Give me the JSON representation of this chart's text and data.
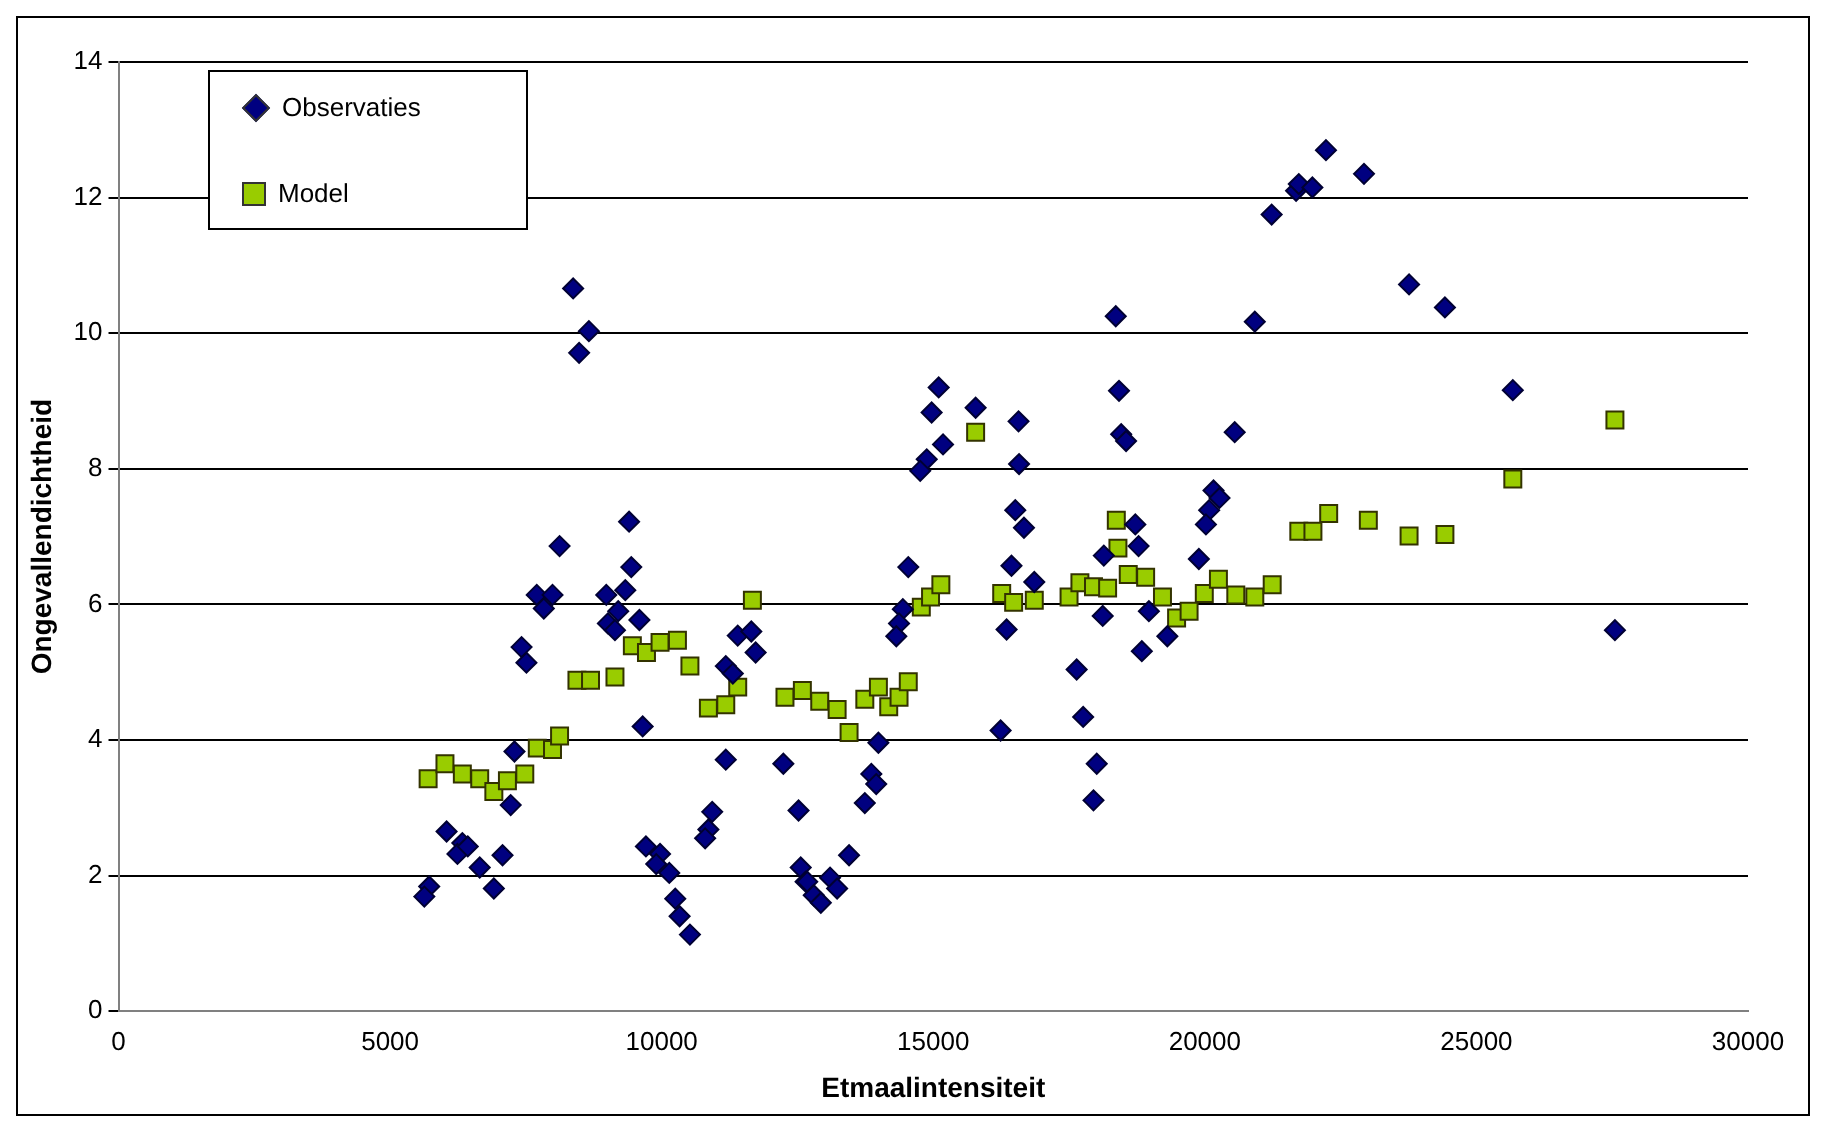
{
  "chart_data": {
    "type": "scatter",
    "xlabel": "Etmaalintensiteit",
    "ylabel": "Ongevallendichtheid",
    "xlim": [
      0,
      30000
    ],
    "xticks": [
      0,
      5000,
      10000,
      15000,
      20000,
      25000,
      30000
    ],
    "ylim": [
      0,
      14
    ],
    "yticks": [
      0,
      2,
      4,
      6,
      8,
      10,
      12,
      14
    ],
    "grid": "y",
    "legend": "top left",
    "series": [
      {
        "name": "Observaties",
        "color": "#000080",
        "marker": "diamond",
        "x": [
          8370,
          8660,
          8480,
          9400,
          8120,
          9440,
          7700,
          7990,
          7830,
          8980,
          9330,
          9200,
          9010,
          9140,
          9590,
          7420,
          7510,
          9650,
          11400,
          11650,
          11730,
          11180,
          11310,
          11180,
          12240,
          12520,
          7290,
          7220,
          6040,
          6330,
          6240,
          6430,
          6650,
          7070,
          6910,
          5720,
          5630,
          10930,
          10860,
          10800,
          9710,
          9970,
          10140,
          9900,
          10250,
          10330,
          10520,
          12560,
          12650,
          18360,
          18420,
          18460,
          18550,
          15100,
          14970,
          15780,
          15180,
          14880,
          14760,
          16570,
          16580,
          16510,
          16670,
          16440,
          16350,
          16240,
          16860,
          18720,
          18780,
          18140,
          18120,
          18970,
          18840,
          19310,
          17640,
          17760,
          18010,
          17950,
          14540,
          14440,
          14370,
          14320,
          13990,
          13860,
          13950,
          13740,
          13450,
          12680,
          12800,
          12930,
          13100,
          13230,
          20920,
          23760,
          24420,
          20550,
          20160,
          20270,
          20080,
          20020,
          19890,
          25670,
          27550,
          21230,
          21680,
          21730,
          21980,
          22230,
          22930
        ],
        "values": [
          10.66,
          10.03,
          9.71,
          7.22,
          6.86,
          6.55,
          6.14,
          6.14,
          5.94,
          6.14,
          6.21,
          5.9,
          5.72,
          5.62,
          5.77,
          5.37,
          5.14,
          4.2,
          5.54,
          5.6,
          5.29,
          5.09,
          4.98,
          3.71,
          3.65,
          2.96,
          3.83,
          3.04,
          2.65,
          2.48,
          2.32,
          2.43,
          2.12,
          2.3,
          1.81,
          1.84,
          1.69,
          2.94,
          2.68,
          2.55,
          2.43,
          2.32,
          2.04,
          2.17,
          1.66,
          1.4,
          1.13,
          2.12,
          1.91,
          10.25,
          9.15,
          8.51,
          8.41,
          9.2,
          8.83,
          8.9,
          8.36,
          8.14,
          7.97,
          8.7,
          8.07,
          7.39,
          7.13,
          6.57,
          5.63,
          4.14,
          6.33,
          7.18,
          6.86,
          6.72,
          5.83,
          5.9,
          5.31,
          5.53,
          5.04,
          4.34,
          3.65,
          3.11,
          6.55,
          5.93,
          5.72,
          5.53,
          3.96,
          3.5,
          3.35,
          3.07,
          2.3,
          1.91,
          1.71,
          1.6,
          1.97,
          1.81,
          10.17,
          10.72,
          10.38,
          8.54,
          7.68,
          7.57,
          7.39,
          7.18,
          6.67,
          9.16,
          5.62,
          11.75,
          12.1,
          12.2,
          12.15,
          12.7,
          12.35
        ]
      },
      {
        "name": "Model",
        "color": "#99cc00",
        "marker": "square",
        "x": [
          5700,
          6010,
          6330,
          6650,
          6910,
          7160,
          7480,
          7710,
          7990,
          8120,
          8440,
          8690,
          9140,
          9460,
          9720,
          9970,
          10290,
          10520,
          10860,
          11180,
          11400,
          11670,
          12270,
          12590,
          12910,
          13230,
          13450,
          13740,
          13990,
          14180,
          14370,
          14540,
          14780,
          14950,
          15140,
          15780,
          16260,
          16480,
          16860,
          17500,
          17700,
          17950,
          18210,
          18400,
          18370,
          18590,
          18910,
          19220,
          19480,
          19710,
          19990,
          20250,
          20570,
          20920,
          21240,
          21730,
          21990,
          22280,
          23010,
          23760,
          24420,
          25670,
          27550
        ],
        "values": [
          3.43,
          3.65,
          3.5,
          3.43,
          3.24,
          3.4,
          3.5,
          3.88,
          3.86,
          4.06,
          4.88,
          4.88,
          4.93,
          5.39,
          5.29,
          5.44,
          5.47,
          5.09,
          4.47,
          4.52,
          4.78,
          6.06,
          4.63,
          4.73,
          4.57,
          4.45,
          4.11,
          4.6,
          4.78,
          4.49,
          4.63,
          4.86,
          5.96,
          6.11,
          6.29,
          8.54,
          6.16,
          6.03,
          6.06,
          6.11,
          6.32,
          6.26,
          6.24,
          6.83,
          7.24,
          6.44,
          6.4,
          6.11,
          5.8,
          5.9,
          6.16,
          6.37,
          6.14,
          6.11,
          6.29,
          7.08,
          7.08,
          7.34,
          7.24,
          7.01,
          7.03,
          7.85,
          8.72
        ]
      }
    ]
  }
}
